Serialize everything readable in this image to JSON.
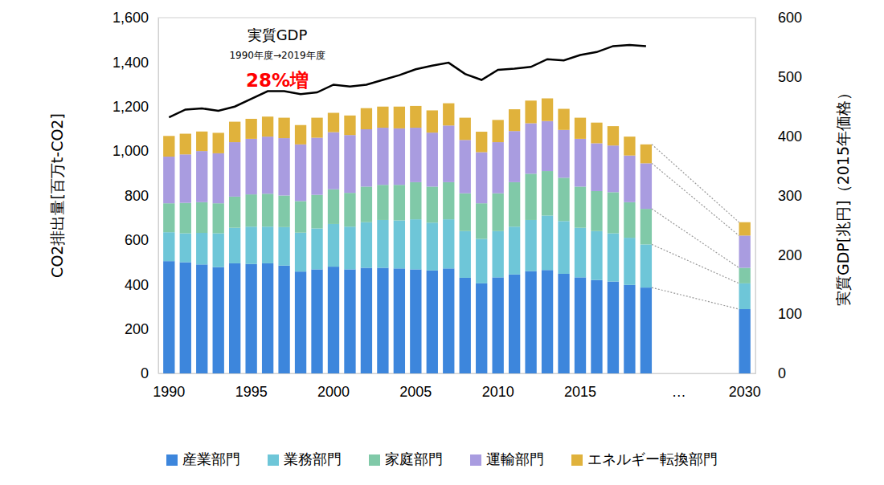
{
  "chart_data": {
    "type": "bar",
    "stacked": true,
    "grid": false,
    "legend": "bottom",
    "ylabel": "CO2排出量[百万t-CO2]",
    "y2label": "実質GDP[兆円]（2015年価格）",
    "categories": [
      "1990",
      null,
      null,
      null,
      null,
      "1995",
      null,
      null,
      null,
      null,
      "2000",
      null,
      null,
      null,
      null,
      "2005",
      null,
      null,
      null,
      null,
      "2010",
      null,
      null,
      null,
      null,
      "2015",
      null,
      null,
      null,
      null,
      null,
      "…",
      null,
      null,
      null,
      "2030"
    ],
    "series": [
      {
        "name": "産業部門",
        "color": "#3d86dc",
        "values": [
          505,
          500,
          490,
          478,
          495,
          492,
          495,
          485,
          458,
          468,
          480,
          468,
          475,
          475,
          472,
          468,
          463,
          472,
          430,
          405,
          432,
          445,
          460,
          465,
          448,
          432,
          420,
          413,
          398,
          386,
          null,
          null,
          null,
          null,
          null,
          289
        ]
      },
      {
        "name": "業務部門",
        "color": "#6ec6d8",
        "values": [
          130,
          130,
          142,
          152,
          160,
          168,
          165,
          173,
          175,
          184,
          192,
          192,
          205,
          215,
          216,
          225,
          215,
          221,
          210,
          200,
          208,
          215,
          230,
          245,
          237,
          223,
          220,
          217,
          212,
          194,
          null,
          null,
          null,
          null,
          null,
          116
        ]
      },
      {
        "name": "家庭部門",
        "color": "#80c9a8",
        "values": [
          130,
          137,
          138,
          135,
          140,
          145,
          148,
          142,
          142,
          151,
          156,
          152,
          160,
          158,
          160,
          167,
          162,
          167,
          170,
          160,
          170,
          200,
          208,
          200,
          195,
          185,
          180,
          185,
          160,
          160,
          null,
          null,
          null,
          null,
          null,
          70
        ]
      },
      {
        "name": "運輸部門",
        "color": "#a99ce0",
        "values": [
          210,
          218,
          230,
          225,
          245,
          250,
          257,
          258,
          255,
          257,
          257,
          260,
          258,
          257,
          254,
          245,
          243,
          255,
          240,
          230,
          230,
          230,
          227,
          225,
          215,
          215,
          215,
          210,
          210,
          205,
          null,
          null,
          null,
          null,
          null,
          145
        ]
      },
      {
        "name": "エネルギー転換部門",
        "color": "#e0b23c",
        "values": [
          93,
          93,
          88,
          92,
          92,
          90,
          90,
          92,
          87,
          90,
          87,
          88,
          95,
          95,
          98,
          98,
          100,
          100,
          100,
          92,
          100,
          98,
          102,
          102,
          95,
          95,
          93,
          87,
          85,
          85,
          null,
          null,
          null,
          null,
          null,
          60
        ]
      },
      {
        "name": "実質GDP",
        "type": "line",
        "axis": "y2",
        "color": "#000000",
        "values": [
          432,
          445,
          447,
          443,
          450,
          463,
          476,
          476,
          471,
          474,
          487,
          484,
          487,
          495,
          503,
          513,
          519,
          524,
          505,
          495,
          512,
          514,
          517,
          530,
          528,
          537,
          542,
          552,
          554,
          552,
          null,
          null,
          null,
          null,
          null,
          null
        ]
      }
    ],
    "ylim": [
      0,
      1600
    ],
    "yticks": [
      0,
      200,
      400,
      600,
      800,
      {
        "value": 1000,
        "label": "1,000"
      },
      {
        "value": 1200,
        "label": "1,200"
      },
      {
        "value": 1400,
        "label": "1,400"
      },
      {
        "value": 1600,
        "label": "1,600"
      }
    ],
    "y2lim": [
      0,
      600
    ],
    "y2ticks": [
      0,
      100,
      200,
      300,
      400,
      500,
      600
    ],
    "annotations": [
      {
        "text": "1990年度→2019年度"
      },
      {
        "text": "28%増",
        "color": "#ff0000"
      }
    ]
  }
}
